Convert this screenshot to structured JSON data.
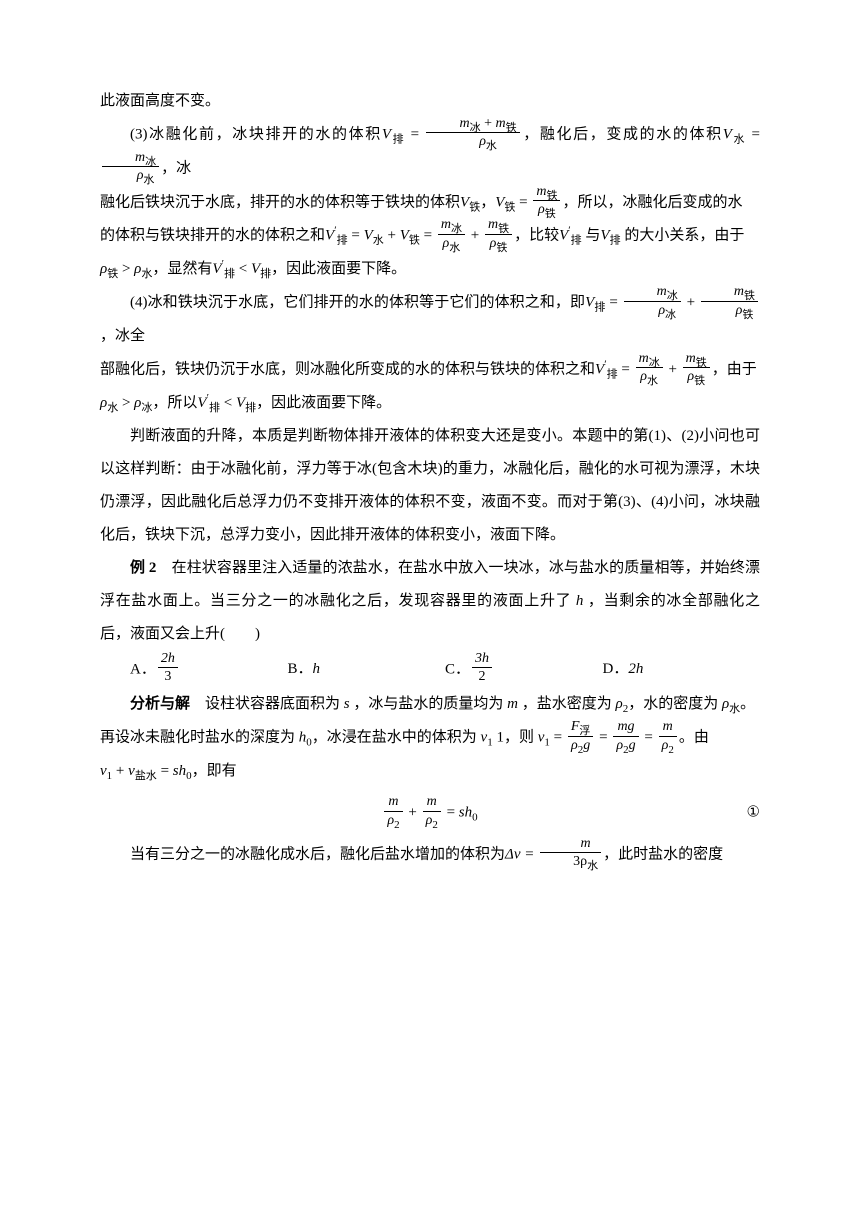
{
  "p0": "此液面高度不变。",
  "p1_a": "(3)冰融化前，冰块排开的水的体积",
  "p1_v_pai": "V",
  "p1_v_pai_sub": "排",
  "p1_eq": " = ",
  "p1_frac1_num_m1": "m",
  "p1_frac1_num_m1_sub": "冰",
  "p1_frac1_num_plus": " + ",
  "p1_frac1_num_m2": "m",
  "p1_frac1_num_m2_sub": "铁",
  "p1_frac1_den_r": "ρ",
  "p1_frac1_den_r_sub": "水",
  "p1_b": "，融化后，变成的水的体积",
  "p1_v_shui": "V",
  "p1_v_shui_sub": "水",
  "p1_frac2_num_m": "m",
  "p1_frac2_num_m_sub": "冰",
  "p1_frac2_den_r": "ρ",
  "p1_frac2_den_r_sub": "水",
  "p1_c": "，冰",
  "p2_a": "融化后铁块沉于水底，排开的水的体积等于铁块的体积",
  "p2_v_tie": "V",
  "p2_v_tie_sub": "铁",
  "p2_comma": "，",
  "p2_eq": " = ",
  "p2_frac_num_m": "m",
  "p2_frac_num_m_sub": "铁",
  "p2_frac_den_r": "ρ",
  "p2_frac_den_r_sub": "铁",
  "p2_b": "，所以，冰融化后变成的水",
  "p3_a": "的体积与铁块排开的水的体积之和",
  "p3_bigeq": "′ = V水 + V铁 = ",
  "p3_comma": "，比较",
  "p3_v1": "V",
  "p3_v1_sup": "′",
  "p3_v1_sub": "排",
  "p3_with": " 与",
  "p3_v2": "V",
  "p3_v2_sub": "排",
  "p3_c": " 的大小关系，由于",
  "p4_a": "ρ",
  "p4_a_sub": "铁",
  "p4_gt": " > ",
  "p4_b": "ρ",
  "p4_b_sub": "水",
  "p4_c": "，显然有",
  "p4_v1": "V",
  "p4_v1_sup": "′",
  "p4_v1_sub": "排",
  "p4_lt": " < ",
  "p4_v2": "V",
  "p4_v2_sub": "排",
  "p4_d": "，因此液面要下降。",
  "p5_a": "(4)冰和铁块沉于水底，它们排开的水的体积等于它们的体积之和，即",
  "p5_b": "，冰全",
  "p6_a": "部融化后，铁块仍沉于水底，则冰融化所变成的水的体积与铁块的体积之和",
  "p6_b": "，由于",
  "p7_a": "ρ",
  "p7_a_sub": "水",
  "p7_gt": " > ",
  "p7_b": "ρ",
  "p7_b_sub": "冰",
  "p7_c": "，所以",
  "p7_v1": "V",
  "p7_v1_sup": "′",
  "p7_v1_sub": "排",
  "p7_lt": " < ",
  "p7_v2": "V",
  "p7_v2_sub": "排",
  "p7_d": "，因此液面要下降。",
  "p8": "判断液面的升降，本质是判断物体排开液体的体积变大还是变小。本题中的第(1)、(2)小问也可以这样判断：由于冰融化前，浮力等于冰(包含木块)的重力，冰融化后，融化的水可视为漂浮，木块仍漂浮，因此融化后总浮力仍不变排开液体的体积不变，液面不变。而对于第(3)、(4)小问，冰块融化后，铁块下沉，总浮力变小，因此排开液体的体积变小，液面下降。",
  "ex2_label": "例 2",
  "ex2_text": "　在柱状容器里注入适量的浓盐水，在盐水中放入一块冰，冰与盐水的质量相等，并始终漂浮在盐水面上。当三分之一的冰融化之后，发现容器里的液面上升了",
  "ex2_h": " h ",
  "ex2_text2": "，当剩余的冰全部融化之后，液面又会上升(　　)",
  "choice_a_label": "A．",
  "choice_a_num": "2h",
  "choice_a_den": "3",
  "choice_b_label": "B．",
  "choice_b_val": "h",
  "choice_c_label": "C．",
  "choice_c_num": "3h",
  "choice_c_den": "2",
  "choice_d_label": "D．",
  "choice_d_val": "2h",
  "ans_label": "分析与解",
  "ans_a": "　设柱状容器底面积为",
  "ans_s": " s ",
  "ans_b": "，冰与盐水的质量均为",
  "ans_m": " m ",
  "ans_c": "，盐水密度为",
  "ans_r2": " ρ",
  "ans_r2_sub": "2",
  "ans_d": "，水的密度为",
  "ans_rw": " ρ",
  "ans_rw_sub": "水",
  "ans_e": "。",
  "p9_a": "再设冰未融化时盐水的深度为",
  "p9_h0": " h",
  "p9_h0_sub": "0",
  "p9_b": "，冰浸在盐水中的体积为",
  "p9_v1": " v",
  "p9_v1_sub": "1",
  "p9_one": " 1，则",
  "p9_eq": " = ",
  "p9_c": "。由",
  "p10_a": "v",
  "p10_a_sub": "1",
  "p10_plus": " + ",
  "p10_b": "v",
  "p10_b_sub": "盐水",
  "p10_eq": " = ",
  "p10_sh": "sh",
  "p10_sh_sub": "0",
  "p10_c": "，即有",
  "eq1_num1": "m",
  "eq1_den1_r": "ρ",
  "eq1_den1_sub": "2",
  "eq1_plus": " + ",
  "eq1_num2": "m",
  "eq1_den2_r": "ρ",
  "eq1_den2_sub": "2",
  "eq1_eq": " = ",
  "eq1_rhs": "sh",
  "eq1_rhs_sub": "0",
  "eq1_label": "①",
  "p11_a": "当有三分之一的冰融化成水后，融化后盐水增加的体积为",
  "p11_dv": "Δv = ",
  "p11_frac_num": "m",
  "p11_frac_den_3r": "3ρ",
  "p11_frac_den_sub": "水",
  "p11_b": "，此时盐水的密度"
}
